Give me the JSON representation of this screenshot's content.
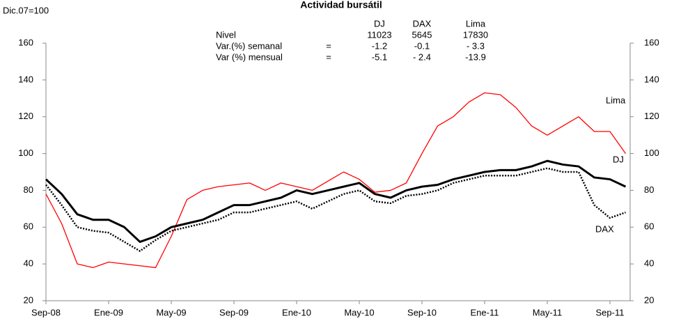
{
  "chart_data": {
    "type": "line",
    "title": "Actividad bursátil",
    "subtitle": "Dic.07=100",
    "categories": [
      "Sep-08",
      null,
      null,
      null,
      "Ene-09",
      null,
      null,
      null,
      "May-09",
      null,
      null,
      null,
      "Sep-09",
      null,
      null,
      null,
      "Ene-10",
      null,
      null,
      null,
      "May-10",
      null,
      null,
      null,
      "Sep-10",
      null,
      null,
      null,
      "Ene-11",
      null,
      null,
      null,
      "May-11",
      null,
      null,
      null,
      "Sep-11",
      null
    ],
    "series": [
      {
        "name": "Lima",
        "color": "#ff0000",
        "values": [
          78,
          62,
          40,
          38,
          41,
          40,
          39,
          38,
          55,
          75,
          80,
          82,
          83,
          84,
          80,
          84,
          82,
          80,
          85,
          90,
          86,
          79,
          80,
          84,
          100,
          115,
          120,
          128,
          133,
          132,
          125,
          115,
          110,
          115,
          120,
          112,
          112,
          100
        ]
      },
      {
        "name": "DJ",
        "color": "#000000",
        "values": [
          86,
          78,
          67,
          64,
          64,
          60,
          52,
          55,
          60,
          62,
          64,
          68,
          72,
          72,
          74,
          76,
          80,
          78,
          80,
          82,
          84,
          78,
          76,
          80,
          82,
          83,
          86,
          88,
          90,
          91,
          91,
          93,
          96,
          94,
          93,
          87,
          86,
          82
        ]
      },
      {
        "name": "DAX",
        "color": "#000000",
        "values": [
          83,
          72,
          60,
          58,
          57,
          52,
          47,
          53,
          58,
          60,
          62,
          64,
          68,
          68,
          70,
          72,
          74,
          70,
          74,
          78,
          80,
          74,
          73,
          77,
          78,
          80,
          84,
          86,
          88,
          88,
          88,
          90,
          92,
          90,
          90,
          72,
          65,
          68
        ]
      }
    ],
    "ylim": [
      20,
      160
    ],
    "yticks": [
      20,
      40,
      60,
      80,
      100,
      120,
      140,
      160
    ],
    "y2lim": [
      20,
      160
    ],
    "y2ticks": [
      20,
      40,
      60,
      80,
      100,
      120,
      140,
      160
    ],
    "table": {
      "columns": [
        "DJ",
        "DAX",
        "Lima"
      ],
      "rows": [
        {
          "label": "Nivel",
          "values": [
            "11023",
            "5645",
            "17830"
          ]
        },
        {
          "label": "Var.(%) semanal",
          "sign": "=",
          "values": [
            "-1.2",
            "-0.1",
            "- 3.3"
          ]
        },
        {
          "label": "Var (%) mensual",
          "sign": "=",
          "values": [
            "-5.1",
            "- 2.4",
            "-13.9"
          ]
        }
      ]
    }
  }
}
